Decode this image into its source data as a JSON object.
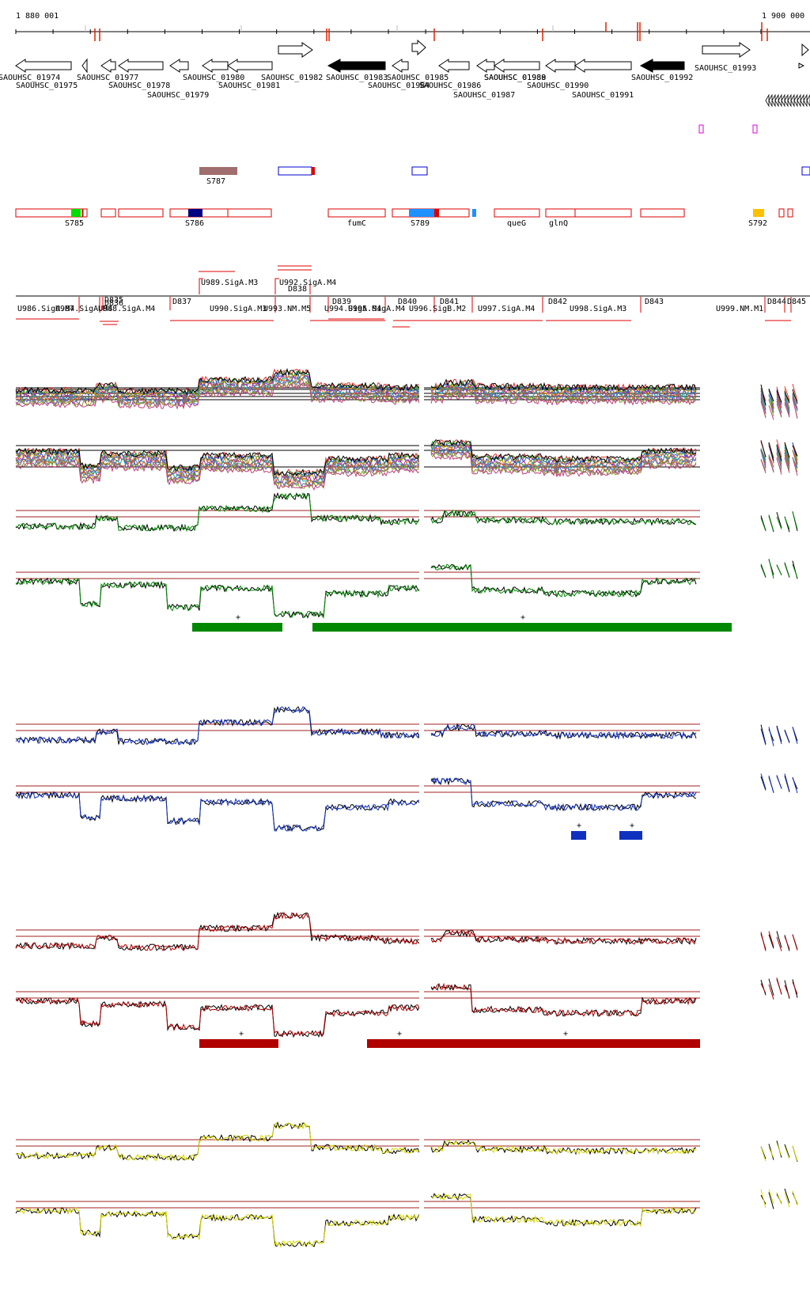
{
  "axis": {
    "start_label": "1 880 001",
    "end_label": "1 900 000"
  },
  "genes": [
    {
      "label": "SAOUHSC_01974",
      "strand": "-",
      "filled": false
    },
    {
      "label": "SAOUHSC_01975",
      "strand": "-",
      "filled": false
    },
    {
      "label": "SAOUHSC_01977",
      "strand": "-",
      "filled": false
    },
    {
      "label": "SAOUHSC_01978",
      "strand": "-",
      "filled": false
    },
    {
      "label": "SAOUHSC_01979",
      "strand": "-",
      "filled": false
    },
    {
      "label": "SAOUHSC_01980",
      "strand": "-",
      "filled": false
    },
    {
      "label": "SAOUHSC_01981",
      "strand": "-",
      "filled": false
    },
    {
      "label": "SAOUHSC_01982",
      "strand": "+",
      "filled": false
    },
    {
      "label": "SAOUHSC_01983",
      "strand": "-",
      "filled": true
    },
    {
      "label": "SAOUHSC_01984",
      "strand": "-",
      "filled": false
    },
    {
      "label": "SAOUHSC_01985",
      "strand": "+",
      "filled": false
    },
    {
      "label": "SAOUHSC_01986",
      "strand": "-",
      "filled": false
    },
    {
      "label": "SAOUHSC_01987",
      "strand": "-",
      "filled": false
    },
    {
      "label": "SAOUHSC_01988",
      "strand": "-",
      "filled": false
    },
    {
      "label": "SAOUHSC_01989",
      "strand": "-",
      "filled": false
    },
    {
      "label": "SAOUHSC_01990",
      "strand": "-",
      "filled": false
    },
    {
      "label": "SAOUHSC_01991",
      "strand": "-",
      "filled": false
    },
    {
      "label": "SAOUHSC_01992",
      "strand": "-",
      "filled": true
    },
    {
      "label": "SAOUHSC_01993",
      "strand": "+",
      "filled": false
    }
  ],
  "segments": [
    {
      "label": "S785",
      "color": "#00dd00"
    },
    {
      "label": "S786",
      "color": "#000080"
    },
    {
      "label": "S787",
      "color": "#a06e6e"
    },
    {
      "label": "fumC",
      "color": ""
    },
    {
      "label": "S789",
      "color": "#1e90ff"
    },
    {
      "label": "queG",
      "color": ""
    },
    {
      "label": "glnQ",
      "color": ""
    },
    {
      "label": "S792",
      "color": "#ffc000"
    }
  ],
  "transcripts_upper": [
    "U989.SigA.M3",
    "U992.SigA.M4",
    "D838"
  ],
  "transcripts": [
    "U986.SigA.M4",
    "U987.SigA.M4",
    "D835",
    "D836",
    "U988.SigA.M4",
    "D837",
    "U990.SigA.M3",
    "U993.NM.M5",
    "D839",
    "U994.SigA.M4",
    "U995.SigA.M4",
    "D840",
    "U996.SigB.M2",
    "D841",
    "U997.SigA.M4",
    "D842",
    "U998.SigA.M3",
    "D843",
    "U999.NM.M1",
    "D844",
    "D845"
  ],
  "condition_panels": [
    {
      "name": "all-conditions",
      "color": "multicolor",
      "bar_color": ""
    },
    {
      "name": "condition-green",
      "color": "#008800",
      "bar_color": "#008800",
      "bar_marks": [
        "+",
        "+"
      ]
    },
    {
      "name": "condition-blue",
      "color": "#1030c0",
      "bar_color": "#1030c0",
      "bar_marks": [
        "+",
        "+"
      ]
    },
    {
      "name": "condition-red",
      "color": "#b00000",
      "bar_color": "#b00000",
      "bar_marks": [
        "+",
        "+",
        "+"
      ]
    },
    {
      "name": "condition-yellow",
      "color": "#d8d800",
      "bar_color": "",
      "bar_marks": []
    }
  ],
  "colors": {
    "gene_outline": "#000000",
    "segment_outline": "#dd0000",
    "threshold_line": "#a02020",
    "reference_trace": "#000000"
  }
}
